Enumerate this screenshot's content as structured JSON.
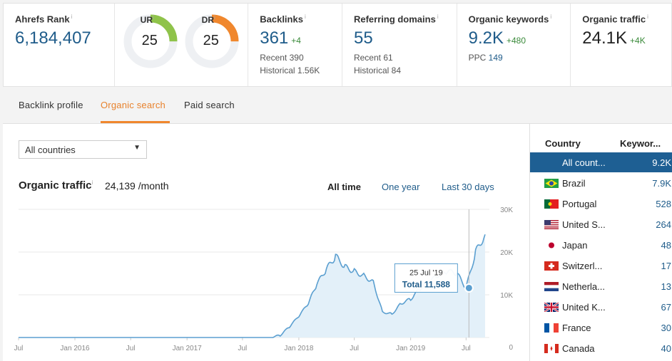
{
  "metrics": {
    "ahrefs_rank": {
      "label": "Ahrefs Rank",
      "value": "6,184,407"
    },
    "ur": {
      "label": "UR",
      "value": "25",
      "fraction": 0.25,
      "color": "#8fc34a"
    },
    "dr": {
      "label": "DR",
      "value": "25",
      "fraction": 0.25,
      "color": "#f0872d"
    },
    "backlinks": {
      "label": "Backlinks",
      "value": "361",
      "delta": "+4",
      "recent": "Recent 390",
      "historical": "Historical 1.56K"
    },
    "referring_domains": {
      "label": "Referring domains",
      "value": "55",
      "recent": "Recent 61",
      "historical": "Historical 84"
    },
    "organic_keywords": {
      "label": "Organic keywords",
      "value": "9.2K",
      "delta": "+480",
      "ppc_label": "PPC",
      "ppc_value": "149"
    },
    "organic_traffic": {
      "label": "Organic traffic",
      "value": "24.1K",
      "delta": "+4K"
    },
    "info_mark": "i"
  },
  "tabs": [
    {
      "label": "Backlink profile",
      "active": false
    },
    {
      "label": "Organic search",
      "active": true
    },
    {
      "label": "Paid search",
      "active": false
    }
  ],
  "country_select": {
    "value": "All countries"
  },
  "chart_header": {
    "title": "Organic traffic",
    "subtitle": "24,139 /month",
    "ranges": [
      "All time",
      "One year",
      "Last 30 days"
    ],
    "selected_range": "All time"
  },
  "chart_data": {
    "type": "area",
    "x_tick_labels": [
      "Jul",
      "Jan 2016",
      "Jul",
      "Jan 2017",
      "Jul",
      "Jan 2018",
      "Jul",
      "Jan 2019",
      "Jul"
    ],
    "y_tick_labels": [
      "30K",
      "20K",
      "10K",
      "0"
    ],
    "ylim": [
      0,
      30000
    ],
    "x": [
      "2015-07",
      "2015-10",
      "2016-01",
      "2016-04",
      "2016-07",
      "2016-10",
      "2017-01",
      "2017-04",
      "2017-07",
      "2017-10",
      "2017-11",
      "2017-12",
      "2018-01",
      "2018-02",
      "2018-03",
      "2018-04",
      "2018-05",
      "2018-06",
      "2018-07",
      "2018-08",
      "2018-09",
      "2018-10",
      "2018-11",
      "2018-12",
      "2019-01",
      "2019-02",
      "2019-03",
      "2019-04",
      "2019-05",
      "2019-06",
      "2019-07",
      "2019-08",
      "2019-09"
    ],
    "y": [
      0,
      0,
      0,
      0,
      0,
      0,
      0,
      0,
      0,
      0,
      500,
      2500,
      5000,
      8000,
      12500,
      16000,
      19000,
      16500,
      15500,
      14500,
      13000,
      6000,
      5500,
      8000,
      9000,
      11500,
      13000,
      14500,
      15500,
      15000,
      11588,
      20000,
      24139
    ],
    "tooltip": {
      "date": "25 Jul '19",
      "label": "Total",
      "value": "11,588",
      "x": "2019-07"
    },
    "grid": true,
    "colors": {
      "line": "#5b9fd0",
      "fill": "#e3f0f9",
      "hover_line": "#bbbbbb"
    }
  },
  "country_table": {
    "headers": [
      "Country",
      "Keywor..."
    ],
    "rows": [
      {
        "name": "All count...",
        "value": "9.2K",
        "selected": true,
        "flag": "none"
      },
      {
        "name": "Brazil",
        "value": "7.9K",
        "flag": "brazil"
      },
      {
        "name": "Portugal",
        "value": "528",
        "flag": "portugal"
      },
      {
        "name": "United S...",
        "value": "264",
        "flag": "usa"
      },
      {
        "name": "Japan",
        "value": "48",
        "flag": "japan"
      },
      {
        "name": "Switzerl...",
        "value": "17",
        "flag": "switzerland"
      },
      {
        "name": "Netherla...",
        "value": "13",
        "flag": "netherlands"
      },
      {
        "name": "United K...",
        "value": "67",
        "flag": "uk"
      },
      {
        "name": "France",
        "value": "30",
        "flag": "france"
      },
      {
        "name": "Canada",
        "value": "40",
        "flag": "canada"
      }
    ]
  }
}
